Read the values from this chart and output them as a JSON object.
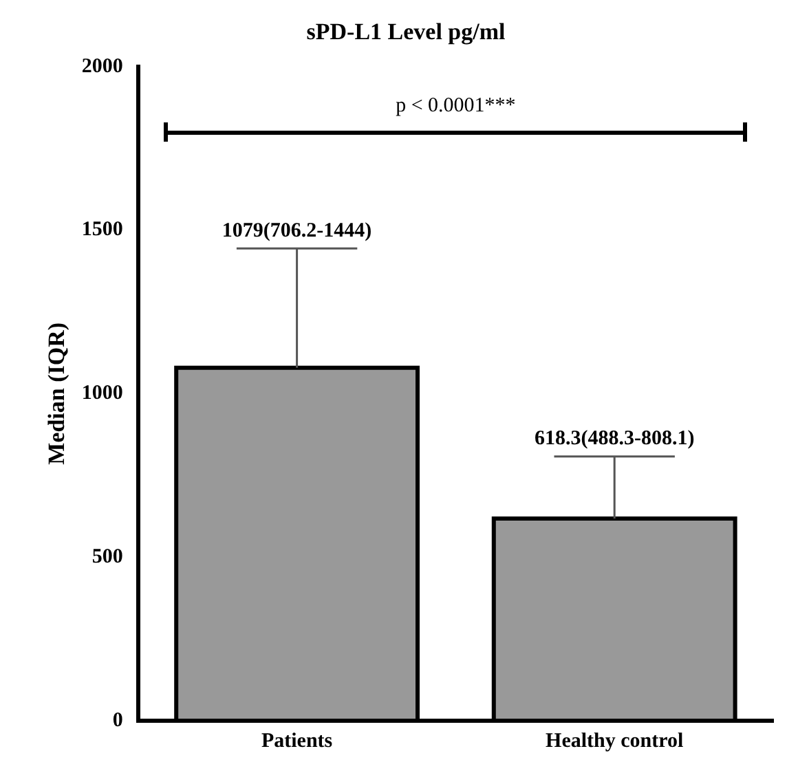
{
  "chart_data": {
    "type": "bar",
    "title": "sPD-L1 Level pg/ml",
    "ylabel": "Median (IQR)",
    "categories": [
      "Patients",
      "Healthy control"
    ],
    "values": [
      1079,
      618.3
    ],
    "errors": [
      [
        1079,
        1444
      ],
      [
        618.3,
        808.1
      ]
    ],
    "color": "#999999",
    "ylim": [
      0,
      2000
    ],
    "yticks": [
      0,
      500,
      1000,
      1500,
      2000
    ],
    "annotations": [
      "p < 0.0001***",
      {
        "text": "1079(706.2-1444)",
        "x": "Patients",
        "y": 1444
      },
      {
        "text": "618.3(488.3-808.1)",
        "x": "Healthy control",
        "y": 808.1
      }
    ],
    "grid": false,
    "legend": false
  }
}
